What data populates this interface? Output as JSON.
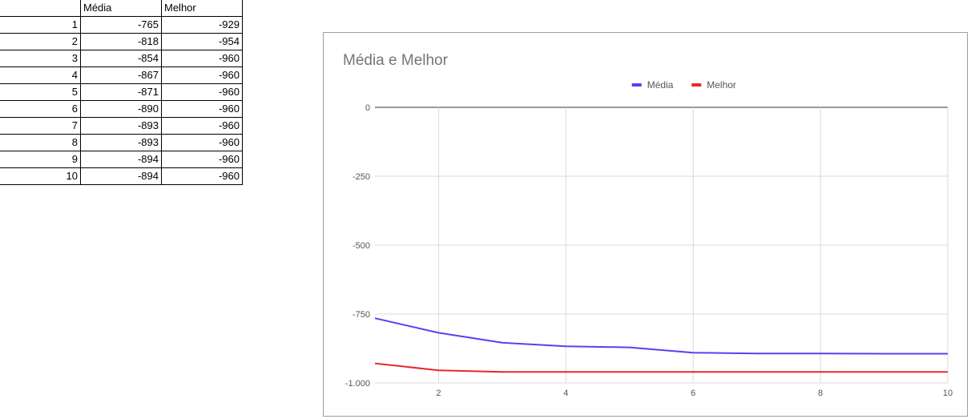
{
  "table": {
    "headers": [
      "",
      "Média",
      "Melhor"
    ],
    "rows": [
      [
        "1",
        "-765",
        "-929"
      ],
      [
        "2",
        "-818",
        "-954"
      ],
      [
        "3",
        "-854",
        "-960"
      ],
      [
        "4",
        "-867",
        "-960"
      ],
      [
        "5",
        "-871",
        "-960"
      ],
      [
        "6",
        "-890",
        "-960"
      ],
      [
        "7",
        "-893",
        "-960"
      ],
      [
        "8",
        "-893",
        "-960"
      ],
      [
        "9",
        "-894",
        "-960"
      ],
      [
        "10",
        "-894",
        "-960"
      ]
    ]
  },
  "chart_data": {
    "type": "line",
    "title": "Média e Melhor",
    "x": [
      1,
      2,
      3,
      4,
      5,
      6,
      7,
      8,
      9,
      10
    ],
    "series": [
      {
        "name": "Média",
        "color": "#5b3ff0",
        "values": [
          -765,
          -818,
          -854,
          -867,
          -871,
          -890,
          -893,
          -893,
          -894,
          -894
        ]
      },
      {
        "name": "Melhor",
        "color": "#e8282b",
        "values": [
          -929,
          -954,
          -960,
          -960,
          -960,
          -960,
          -960,
          -960,
          -960,
          -960
        ]
      }
    ],
    "xlim": [
      1,
      10
    ],
    "ylim": [
      -1000,
      0
    ],
    "xticks": [
      2,
      4,
      6,
      8,
      10
    ],
    "yticks": [
      0,
      -250,
      -500,
      -750,
      -1000
    ],
    "ytick_labels": [
      "0",
      "-250",
      "-500",
      "-750",
      "-1.000"
    ],
    "grid": true,
    "legend_position": "top"
  }
}
